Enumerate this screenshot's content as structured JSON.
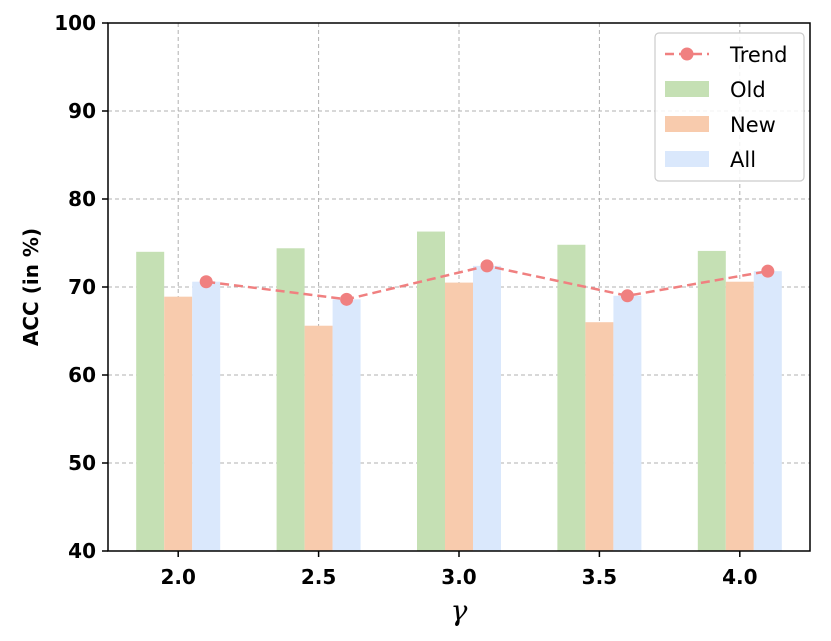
{
  "chart_data": {
    "type": "bar",
    "categories": [
      "2.0",
      "2.5",
      "3.0",
      "3.5",
      "4.0"
    ],
    "series": [
      {
        "name": "Old",
        "values": [
          74.0,
          74.4,
          76.3,
          74.8,
          74.1
        ],
        "color": "#c5e0b4"
      },
      {
        "name": "New",
        "values": [
          68.9,
          65.6,
          70.5,
          66.0,
          70.6
        ],
        "color": "#f8cbad"
      },
      {
        "name": "All",
        "values": [
          70.6,
          68.6,
          72.4,
          69.0,
          71.8
        ],
        "color": "#dae8fc"
      }
    ],
    "trend": {
      "name": "Trend",
      "values": [
        70.6,
        68.6,
        72.4,
        69.0,
        71.8
      ],
      "color": "#f08080"
    },
    "xlabel": "γ",
    "ylabel": "ACC (in %)",
    "ylim": [
      40,
      100
    ],
    "yticks": [
      "40",
      "50",
      "60",
      "70",
      "80",
      "90",
      "100"
    ],
    "grid": true,
    "legend_position": "top-right"
  }
}
